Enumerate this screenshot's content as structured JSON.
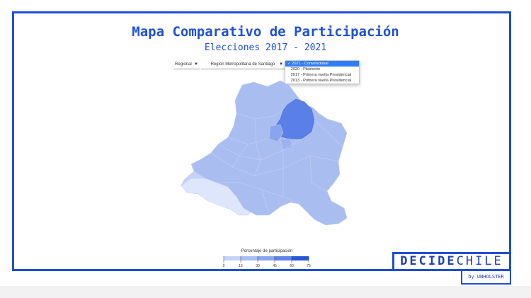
{
  "header": {
    "title": "Mapa Comparativo de Participación",
    "subtitle": "Elecciones 2017 - 2021"
  },
  "filters": {
    "level_label": "Regional",
    "region_label": "Región Metropolitana de Santiago",
    "election_options": [
      {
        "label": "2021 - Convencional",
        "selected": true
      },
      {
        "label": "2020 - Plebiscito",
        "selected": false
      },
      {
        "label": "2017 - Primera vuelta Presidencial",
        "selected": false
      },
      {
        "label": "2013 - Primera vuelta Presidencial",
        "selected": false
      }
    ]
  },
  "legend": {
    "title": "Porcentaje de participación",
    "ticks": [
      "0",
      "15",
      "30",
      "45",
      "60",
      "75"
    ],
    "colors": [
      "#dde6fb",
      "#c3d2f6",
      "#a8bdf1",
      "#8aa5ec",
      "#5f84e6",
      "#2457d8"
    ]
  },
  "brand": {
    "part1": "DECIDE",
    "part2": "CHILE",
    "byline": "by UNHOLSTER"
  },
  "colors": {
    "accent": "#1f4fd8",
    "region_fill": "#aabdf1",
    "highlight_fill": "#5a7fe6",
    "light_fill": "#dce5fb"
  }
}
